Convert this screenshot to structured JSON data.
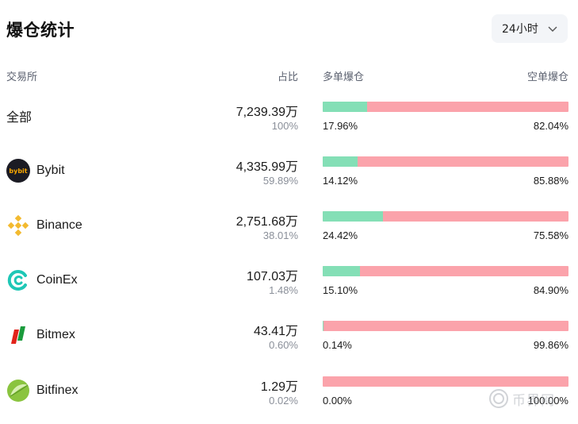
{
  "header": {
    "title": "爆仓统计",
    "period_label": "24小时"
  },
  "columns": {
    "exchange": "交易所",
    "share": "占比",
    "long": "多单爆仓",
    "short": "空单爆仓"
  },
  "rows": [
    {
      "name": "全部",
      "amount": "7,239.39万",
      "share": "100%",
      "long_pct": "17.96%",
      "short_pct": "82.04%",
      "long_value": 17.96,
      "logo": "none"
    },
    {
      "name": "Bybit",
      "amount": "4,335.99万",
      "share": "59.89%",
      "long_pct": "14.12%",
      "short_pct": "85.88%",
      "long_value": 14.12,
      "logo": "bybit-logo-icon",
      "logo_text": "bybit"
    },
    {
      "name": "Binance",
      "amount": "2,751.68万",
      "share": "38.01%",
      "long_pct": "24.42%",
      "short_pct": "75.58%",
      "long_value": 24.42,
      "logo": "binance-logo-icon"
    },
    {
      "name": "CoinEx",
      "amount": "107.03万",
      "share": "1.48%",
      "long_pct": "15.10%",
      "short_pct": "84.90%",
      "long_value": 15.1,
      "logo": "coinex-logo-icon"
    },
    {
      "name": "Bitmex",
      "amount": "43.41万",
      "share": "0.60%",
      "long_pct": "0.14%",
      "short_pct": "99.86%",
      "long_value": 0.14,
      "logo": "bitmex-logo-icon"
    },
    {
      "name": "Bitfinex",
      "amount": "1.29万",
      "share": "0.02%",
      "long_pct": "0.00%",
      "short_pct": "100.00%",
      "long_value": 0.0,
      "logo": "bitfinex-logo-icon"
    }
  ],
  "colors": {
    "long": "#84dfb6",
    "short": "#fba3ab"
  },
  "watermark": {
    "text": "币界网"
  }
}
